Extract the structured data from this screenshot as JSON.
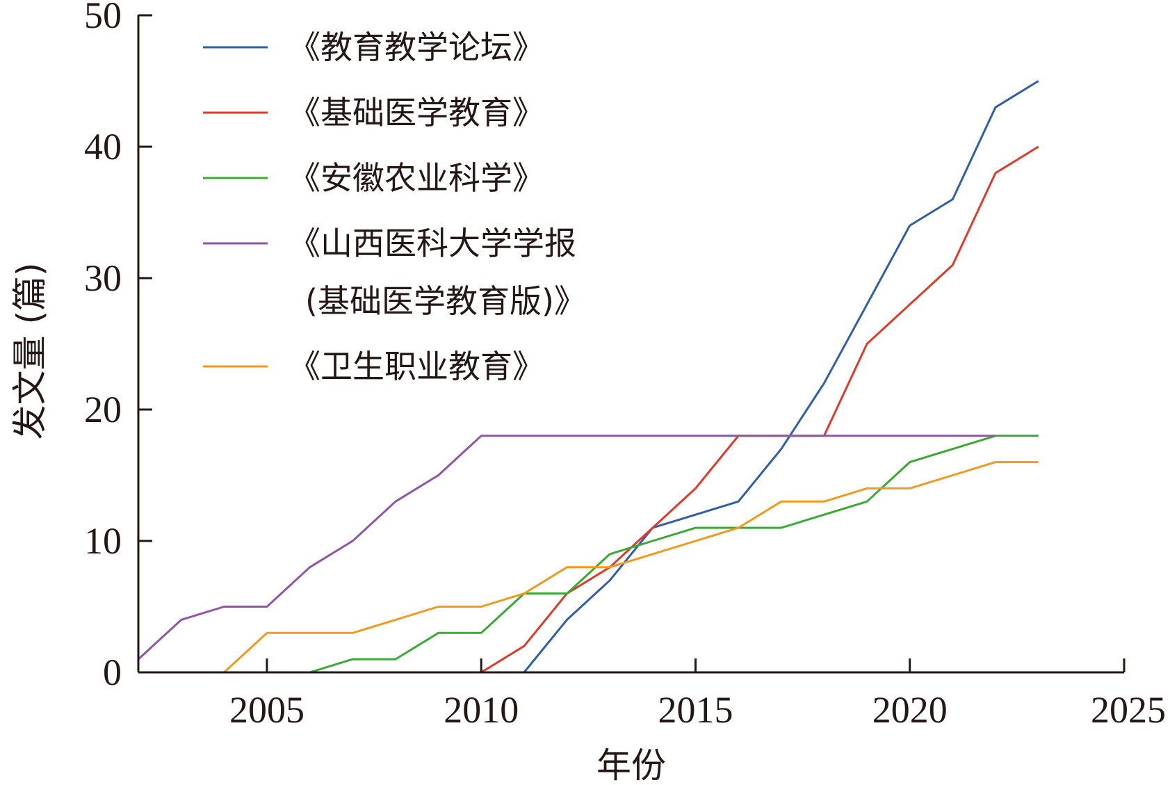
{
  "chart_data": {
    "type": "line",
    "xlabel": "年份",
    "ylabel": "发文量 (篇)",
    "xlim": [
      2002,
      2025
    ],
    "ylim": [
      0,
      50
    ],
    "x_ticks": [
      2005,
      2010,
      2015,
      2020,
      2025
    ],
    "y_ticks": [
      0,
      10,
      20,
      30,
      40,
      50
    ],
    "grid": false,
    "legend_position": "top-left",
    "x": [
      2002,
      2003,
      2004,
      2005,
      2006,
      2007,
      2008,
      2009,
      2010,
      2011,
      2012,
      2013,
      2014,
      2015,
      2016,
      2017,
      2018,
      2019,
      2020,
      2021,
      2022,
      2023
    ],
    "series": [
      {
        "name": "《教育教学论坛》",
        "color": "#2e5fa8",
        "values": [
          0,
          0,
          0,
          0,
          0,
          0,
          0,
          0,
          0,
          0,
          4,
          7,
          11,
          12,
          13,
          17,
          22,
          28,
          34,
          36,
          43,
          45
        ]
      },
      {
        "name": "《基础医学教育》",
        "color": "#e03a28",
        "values": [
          null,
          null,
          null,
          null,
          null,
          null,
          null,
          null,
          0,
          2,
          6,
          8,
          11,
          14,
          18,
          18,
          18,
          25,
          28,
          31,
          38,
          40
        ]
      },
      {
        "name": "《安徽农业科学》",
        "color": "#3aaa35",
        "values": [
          null,
          null,
          null,
          null,
          0,
          1,
          1,
          3,
          3,
          6,
          6,
          9,
          10,
          11,
          11,
          11,
          12,
          13,
          16,
          17,
          18,
          18
        ]
      },
      {
        "name": "《山西医科大学学报(基础医学教育版)》",
        "legend_lines": [
          "《山西医科大学学报",
          "(基础医学教育版)》"
        ],
        "color": "#8e56a8",
        "values": [
          1,
          4,
          5,
          5,
          8,
          10,
          13,
          15,
          18,
          18,
          18,
          18,
          18,
          18,
          18,
          18,
          18,
          18,
          18,
          18,
          18,
          null
        ]
      },
      {
        "name": "《卫生职业教育》",
        "color": "#f39a1e",
        "values": [
          null,
          null,
          0,
          3,
          3,
          3,
          4,
          5,
          5,
          6,
          8,
          8,
          9,
          10,
          11,
          13,
          13,
          14,
          14,
          15,
          16,
          16
        ]
      }
    ]
  }
}
